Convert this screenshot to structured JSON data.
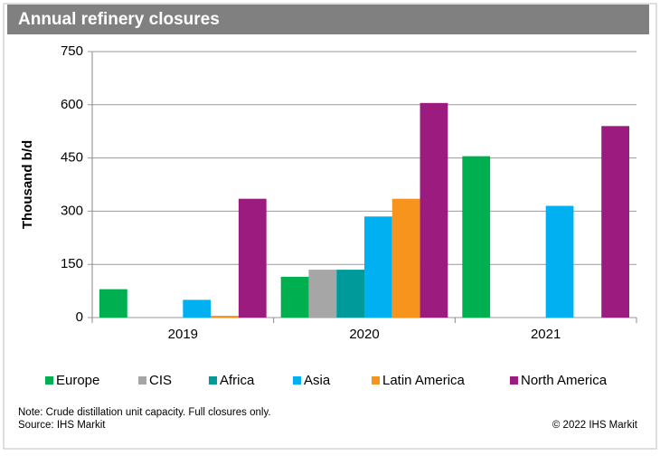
{
  "chart_data": {
    "type": "bar",
    "title": "Annual refinery closures",
    "y_label": "Thousand b/d",
    "categories": [
      "2019",
      "2020",
      "2021"
    ],
    "series": [
      {
        "name": "Europe",
        "color": "#00b050",
        "values": [
          80,
          115,
          455
        ]
      },
      {
        "name": "CIS",
        "color": "#a6a6a6",
        "values": [
          0,
          135,
          0
        ]
      },
      {
        "name": "Africa",
        "color": "#009a9a",
        "values": [
          0,
          135,
          0
        ]
      },
      {
        "name": "Asia",
        "color": "#00b0f0",
        "values": [
          50,
          285,
          315
        ]
      },
      {
        "name": "Latin America",
        "color": "#f7941d",
        "values": [
          5,
          335,
          0
        ]
      },
      {
        "name": "North America",
        "color": "#9b1b7e",
        "values": [
          335,
          605,
          540
        ]
      }
    ],
    "ylim": [
      0,
      750
    ],
    "yticks": [
      0,
      150,
      300,
      450,
      600,
      750
    ],
    "grid": true,
    "legend": "bottom",
    "note": "Note: Crude distillation unit capacity. Full closures only.",
    "source": "Source: IHS Markit",
    "copyright": "© 2022 IHS Markit"
  }
}
